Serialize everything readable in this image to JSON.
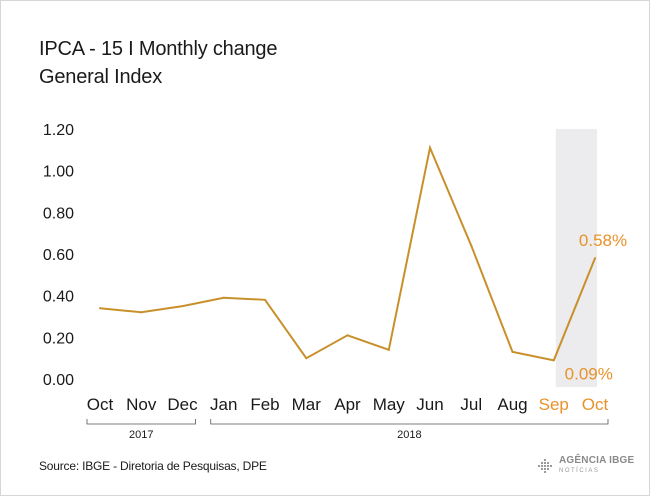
{
  "header": {
    "title": "IPCA - 15 I Monthly change",
    "subtitle": "General Index"
  },
  "footer": {
    "source": "Source: IBGE - Diretoria de Pesquisas, DPE",
    "logo_line1": "AGÊNCIA IBGE",
    "logo_line2": "NOTÍCIAS"
  },
  "colors": {
    "line": "#c8902b",
    "highlight_text": "#e8922a",
    "axis_text": "#1a1a1a",
    "highlight_band": "#ececee"
  },
  "chart_data": {
    "type": "line",
    "categories": [
      "Oct",
      "Nov",
      "Dec",
      "Jan",
      "Feb",
      "Mar",
      "Apr",
      "May",
      "Jun",
      "Jul",
      "Aug",
      "Sep",
      "Oct"
    ],
    "values": [
      0.34,
      0.32,
      0.35,
      0.39,
      0.38,
      0.1,
      0.21,
      0.14,
      1.11,
      0.64,
      0.13,
      0.09,
      0.58
    ],
    "yticks": [
      "0.00",
      "0.20",
      "0.40",
      "0.60",
      "0.80",
      "1.00",
      "1.20"
    ],
    "ylim": [
      0,
      1.2
    ],
    "highlighted_categories": [
      11,
      12
    ],
    "data_labels": [
      {
        "index": 11,
        "text": "0.09%"
      },
      {
        "index": 12,
        "text": "0.58%"
      }
    ],
    "year_groups": [
      {
        "label": "2017",
        "start": 0,
        "end": 2
      },
      {
        "label": "2018",
        "start": 3,
        "end": 12
      }
    ],
    "grid": false,
    "legend": "none"
  }
}
